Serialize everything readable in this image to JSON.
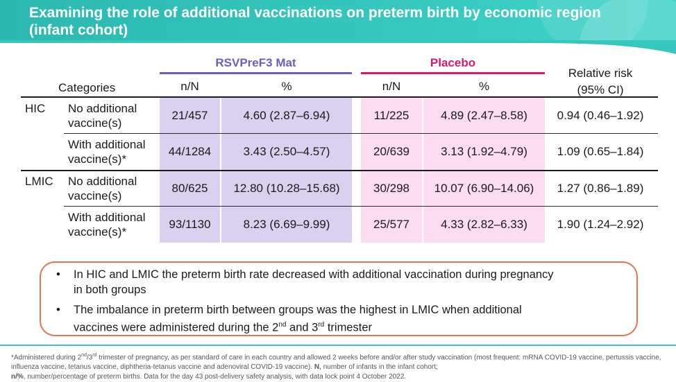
{
  "title": "Examining the role of additional vaccinations on preterm birth by economic region (infant cohort)",
  "colors": {
    "banner": "#35c7be",
    "rsv_accent": "#6a5fc1",
    "placebo_accent": "#d8196e",
    "rsv_shade": "#d9d1ef",
    "placebo_shade": "#fbdcf1",
    "callout_border": "#e5754f"
  },
  "table": {
    "categories_header": "Categories",
    "group_rsv": "RSVPreF3 Mat",
    "group_placebo": "Placebo",
    "col_nN": "n/N",
    "col_pct": "%",
    "rr_header_line1": "Relative risk",
    "rr_header_line2": "(95% CI)",
    "rows": [
      {
        "region": "HIC",
        "category_line1": "No additional",
        "category_line2": "vaccine(s)",
        "rsv_nN": "21/457",
        "rsv_pct": "4.60 (2.87–6.94)",
        "pl_nN": "11/225",
        "pl_pct": "4.89 (2.47–8.58)",
        "rr": "0.94 (0.46–1.92)"
      },
      {
        "region": "",
        "category_line1": "With additional",
        "category_line2": "vaccine(s)*",
        "rsv_nN": "44/1284",
        "rsv_pct": "3.43 (2.50–4.57)",
        "pl_nN": "20/639",
        "pl_pct": "3.13 (1.92–4.79)",
        "rr": "1.09 (0.65–1.84)"
      },
      {
        "region": "LMIC",
        "category_line1": "No additional",
        "category_line2": "vaccine(s)",
        "rsv_nN": "80/625",
        "rsv_pct": "12.80 (10.28–15.68)",
        "pl_nN": "30/298",
        "pl_pct": "10.07 (6.90–14.06)",
        "rr": "1.27 (0.86–1.89)"
      },
      {
        "region": "",
        "category_line1": "With additional",
        "category_line2": "vaccine(s)*",
        "rsv_nN": "93/1130",
        "rsv_pct": "8.23 (6.69–9.99)",
        "pl_nN": "25/577",
        "pl_pct": "4.33 (2.82–6.33)",
        "rr": "1.90 (1.24–2.92)"
      }
    ]
  },
  "callout": {
    "bullet_symbol": "•",
    "bullet1_line1": "In HIC and LMIC the preterm birth rate decreased with additional vaccination during pregnancy",
    "bullet1_line2": "in both groups",
    "bullet2_line1": "The imbalance in preterm birth between groups was the highest in LMIC when additional",
    "bullet2_line2_a": "vaccines were administered during the 2",
    "bullet2_sup1": "nd",
    "bullet2_line2_b": " and 3",
    "bullet2_sup2": "rd",
    "bullet2_line2_c": " trimester"
  },
  "footnote": {
    "f1_a": "*Administered during 2",
    "f1_sup1": "nd",
    "f1_b": "/3",
    "f1_sup2": "rd",
    "f1_c": " trimester of pregnancy, as per standard of care in each country and allowed 2 weeks before and/or after study vaccination (most frequent: mRNA COVID-19 vaccine, pertussis vaccine, influenza vaccine, tetanus vaccine, diphtheria-tetanus vaccine and adenoviral COVID-19 vaccine). ",
    "f1_bold_N": "N",
    "f1_d": ", number of infants in the infant cohort; ",
    "f1_bold_nN": "n/%",
    "f1_e": ", number/percentage of preterm births. Data for the day 43 post-delivery safety analysis, with data lock point 4 October 2022."
  }
}
